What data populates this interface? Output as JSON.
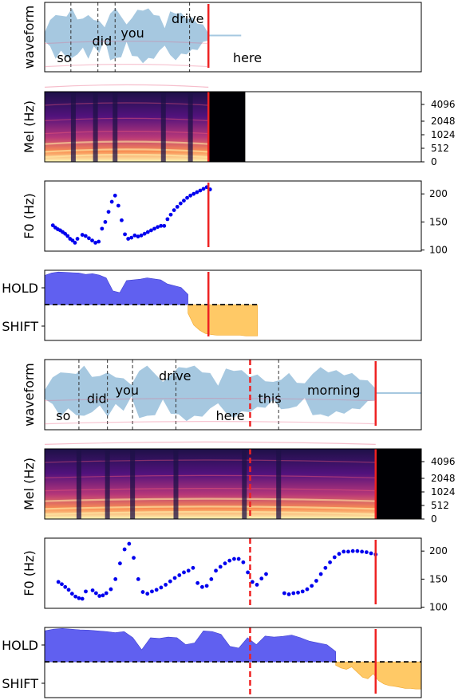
{
  "chart_data": [
    {
      "figure": "top",
      "type": "area",
      "panel": "waveform",
      "ylabel": "waveform",
      "x_range": [
        0,
        4.6
      ],
      "audio_end": 2.0,
      "marker_solid": 2.0,
      "words": [
        {
          "text": "so",
          "x": 0.15,
          "row": "low"
        },
        {
          "text": "did",
          "x": 0.58,
          "row": "mid"
        },
        {
          "text": "you",
          "x": 0.93,
          "row": "high2"
        },
        {
          "text": "drive",
          "x": 1.55,
          "row": "high"
        },
        {
          "text": "here",
          "x": 2.3,
          "row": "low"
        }
      ],
      "boundaries": [
        0.32,
        0.65,
        0.86,
        1.77
      ],
      "envelope": [
        0.15,
        0.45,
        0.75,
        0.6,
        0.7,
        0.85,
        0.6,
        0.5,
        0.75,
        0.45,
        0.55,
        0.2,
        0.8,
        0.85,
        0.7,
        0.3,
        0.65,
        0.8,
        0.9,
        0.85,
        0.75,
        0.6,
        0.3,
        0.75,
        0.8,
        0.7,
        0.6,
        0.55,
        0.45,
        0.3,
        0.12
      ]
    },
    {
      "figure": "top",
      "type": "heatmap",
      "panel": "mel",
      "ylabel": "Mel (Hz)",
      "yticks": [
        0,
        512,
        1024,
        2048,
        4096
      ],
      "x_range": [
        0,
        4.6
      ],
      "spectrogram_end": 2.45,
      "audio_end": 2.0,
      "marker_solid": 2.0
    },
    {
      "figure": "top",
      "type": "scatter",
      "panel": "f0",
      "ylabel": "F0 (Hz)",
      "yticks": [
        100,
        150,
        200
      ],
      "ylim": [
        98,
        223
      ],
      "x_range": [
        0,
        4.6
      ],
      "marker_solid": 2.0,
      "x": [
        0.1,
        0.13,
        0.16,
        0.19,
        0.22,
        0.25,
        0.28,
        0.31,
        0.34,
        0.37,
        0.4,
        0.46,
        0.5,
        0.54,
        0.58,
        0.62,
        0.66,
        0.7,
        0.74,
        0.78,
        0.82,
        0.86,
        0.9,
        0.94,
        0.98,
        1.02,
        1.06,
        1.1,
        1.14,
        1.18,
        1.22,
        1.26,
        1.3,
        1.34,
        1.38,
        1.42,
        1.46,
        1.5,
        1.54,
        1.58,
        1.62,
        1.66,
        1.7,
        1.74,
        1.78,
        1.82,
        1.86,
        1.9,
        1.94,
        1.98,
        2.02
      ],
      "y": [
        144,
        140,
        137,
        135,
        132,
        129,
        125,
        120,
        117,
        113,
        120,
        127,
        125,
        121,
        117,
        113,
        115,
        138,
        150,
        168,
        186,
        197,
        179,
        153,
        128,
        120,
        122,
        126,
        124,
        126,
        129,
        132,
        135,
        138,
        141,
        143,
        143,
        155,
        163,
        171,
        177,
        183,
        188,
        193,
        197,
        200,
        203,
        206,
        209,
        212,
        208
      ]
    },
    {
      "figure": "top",
      "type": "area",
      "panel": "turn",
      "yticks": [
        "HOLD",
        "SHIFT"
      ],
      "x_range": [
        0,
        4.6
      ],
      "marker_solid": 2.0,
      "hold_end": 1.75,
      "shift_start": 1.75,
      "shift_end": 2.6,
      "hold": [
        0.85,
        0.92,
        0.95,
        0.94,
        0.93,
        0.92,
        0.88,
        0.9,
        0.86,
        0.78,
        0.4,
        0.35,
        0.7,
        0.72,
        0.74,
        0.78,
        0.75,
        0.72,
        0.6,
        0.55,
        0.5,
        0.3
      ],
      "shift": [
        0.25,
        0.6,
        0.75,
        0.85,
        0.88,
        0.9,
        0.9,
        0.9,
        0.9,
        0.9,
        0.92,
        0.92,
        0.92
      ]
    },
    {
      "figure": "bottom",
      "type": "area",
      "panel": "waveform",
      "ylabel": "waveform",
      "x_range": [
        0,
        3.3
      ],
      "audio_end": 2.9,
      "marker_solid": 2.9,
      "marker_dashed": 1.8,
      "words": [
        {
          "text": "so",
          "x": 0.1,
          "row": "low"
        },
        {
          "text": "did",
          "x": 0.37,
          "row": "mid"
        },
        {
          "text": "you",
          "x": 0.62,
          "row": "high2"
        },
        {
          "text": "drive",
          "x": 1.0,
          "row": "high"
        },
        {
          "text": "here",
          "x": 1.5,
          "row": "low"
        },
        {
          "text": "this",
          "x": 1.87,
          "row": "mid"
        },
        {
          "text": "morning",
          "x": 2.3,
          "row": "high2"
        }
      ],
      "boundaries": [
        0.3,
        0.55,
        0.77,
        1.15,
        2.05
      ],
      "envelope": [
        0.15,
        0.45,
        0.75,
        0.6,
        0.7,
        0.85,
        0.6,
        0.5,
        0.75,
        0.45,
        0.55,
        0.2,
        0.8,
        0.85,
        0.7,
        0.3,
        0.65,
        0.8,
        0.9,
        0.85,
        0.75,
        0.6,
        0.3,
        0.75,
        0.8,
        0.7,
        0.6,
        0.55,
        0.45,
        0.3,
        0.5,
        0.6,
        0.4,
        0.25,
        0.7,
        0.8,
        0.75,
        0.7,
        0.65,
        0.6,
        0.5,
        0.35,
        0.2
      ]
    },
    {
      "figure": "bottom",
      "type": "heatmap",
      "panel": "mel",
      "ylabel": "Mel (Hz)",
      "yticks": [
        0,
        512,
        1024,
        2048,
        4096
      ],
      "x_range": [
        0,
        3.3
      ],
      "spectrogram_end": 3.3,
      "audio_end": 2.9,
      "marker_solid": 2.9,
      "marker_dashed": 1.8
    },
    {
      "figure": "bottom",
      "type": "scatter",
      "panel": "f0",
      "ylabel": "F0 (Hz)",
      "yticks": [
        100,
        150,
        200
      ],
      "ylim": [
        98,
        223
      ],
      "x_range": [
        0,
        3.3
      ],
      "marker_solid": 2.9,
      "marker_dashed": 1.8,
      "x": [
        0.12,
        0.15,
        0.18,
        0.21,
        0.24,
        0.27,
        0.3,
        0.33,
        0.36,
        0.42,
        0.45,
        0.48,
        0.51,
        0.54,
        0.58,
        0.62,
        0.66,
        0.7,
        0.74,
        0.78,
        0.82,
        0.86,
        0.9,
        0.94,
        0.98,
        1.02,
        1.06,
        1.1,
        1.14,
        1.18,
        1.22,
        1.26,
        1.3,
        1.34,
        1.38,
        1.42,
        1.46,
        1.5,
        1.54,
        1.58,
        1.62,
        1.66,
        1.7,
        1.74,
        1.78,
        1.82,
        1.86,
        1.9,
        1.94,
        2.1,
        2.14,
        2.18,
        2.22,
        2.26,
        2.3,
        2.34,
        2.38,
        2.42,
        2.46,
        2.5,
        2.54,
        2.58,
        2.62,
        2.66,
        2.7,
        2.74,
        2.78,
        2.82,
        2.86,
        2.9
      ],
      "y": [
        145,
        141,
        136,
        131,
        124,
        119,
        116,
        115,
        128,
        130,
        125,
        120,
        121,
        125,
        132,
        150,
        178,
        203,
        213,
        188,
        150,
        127,
        124,
        128,
        131,
        135,
        140,
        146,
        152,
        157,
        162,
        165,
        170,
        143,
        136,
        138,
        150,
        165,
        172,
        178,
        183,
        186,
        186,
        180,
        162,
        145,
        140,
        151,
        159,
        125,
        123,
        125,
        126,
        128,
        132,
        138,
        147,
        159,
        170,
        180,
        189,
        195,
        199,
        199,
        200,
        200,
        199,
        198,
        196,
        194
      ]
    },
    {
      "figure": "bottom",
      "type": "area",
      "panel": "turn",
      "yticks": [
        "HOLD",
        "SHIFT"
      ],
      "x_range": [
        0,
        3.3
      ],
      "marker_solid": 2.9,
      "marker_dashed": 1.8,
      "hold_end": 2.55,
      "shift_start": 2.55,
      "shift_end": 3.3,
      "hold": [
        0.9,
        0.95,
        0.97,
        0.95,
        0.93,
        0.92,
        0.9,
        0.88,
        0.85,
        0.88,
        0.7,
        0.35,
        0.7,
        0.68,
        0.72,
        0.7,
        0.5,
        0.55,
        0.9,
        0.88,
        0.8,
        0.45,
        0.4,
        0.7,
        0.5,
        0.75,
        0.72,
        0.74,
        0.78,
        0.7,
        0.6,
        0.55,
        0.5,
        0.3
      ],
      "shift": [
        0.1,
        0.18,
        0.22,
        0.15,
        0.3,
        0.45,
        0.5,
        0.35,
        0.55,
        0.65,
        0.7,
        0.72,
        0.75,
        0.78,
        0.78,
        0.8,
        0.8
      ]
    }
  ]
}
